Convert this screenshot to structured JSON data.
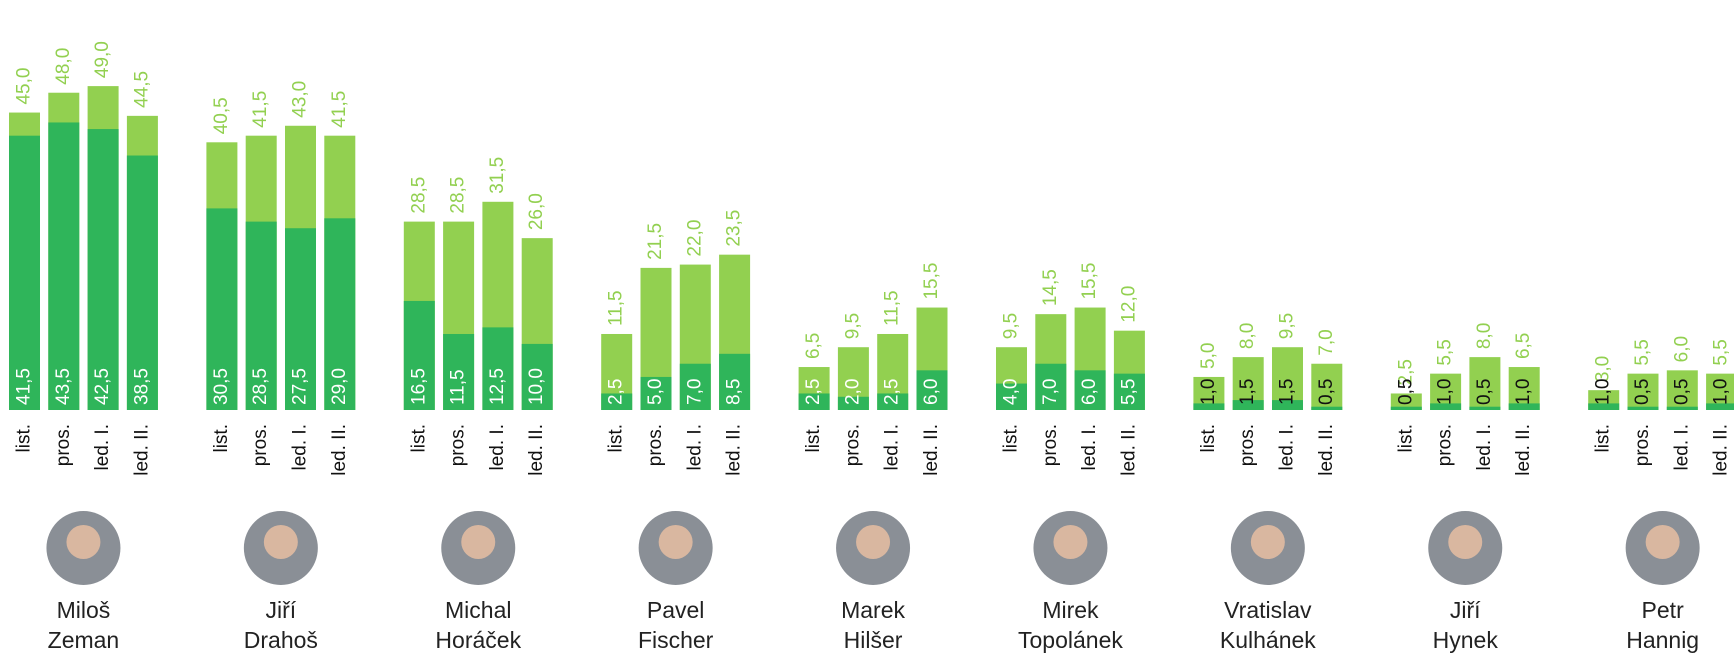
{
  "chart_data": {
    "type": "bar",
    "categories": [
      "list.",
      "pros.",
      "led. I.",
      "led. II."
    ],
    "groups": [
      {
        "name": [
          "Miloš",
          "Zeman"
        ],
        "series": [
          {
            "color": "#92d050",
            "values": [
              45,
              48,
              49,
              44.5
            ],
            "value_labels": [
              "45,0",
              "48,0",
              "49,0",
              "44,5"
            ]
          },
          {
            "color": "#2fb55a",
            "values": [
              41.5,
              43.5,
              42.5,
              38.5
            ],
            "value_labels": [
              "41,5",
              "43,5",
              "42,5",
              "38,5"
            ]
          }
        ]
      },
      {
        "name": [
          "Jiří",
          "Drahoš"
        ],
        "series": [
          {
            "color": "#92d050",
            "values": [
              40.5,
              41.5,
              43,
              41.5
            ],
            "value_labels": [
              "40,5",
              "41,5",
              "43,0",
              "41,5"
            ]
          },
          {
            "color": "#2fb55a",
            "values": [
              30.5,
              28.5,
              27.5,
              29
            ],
            "value_labels": [
              "30,5",
              "28,5",
              "27,5",
              "29,0"
            ]
          }
        ]
      },
      {
        "name": [
          "Michal",
          "Horáček"
        ],
        "series": [
          {
            "color": "#92d050",
            "values": [
              28.5,
              28.5,
              31.5,
              26
            ],
            "value_labels": [
              "28,5",
              "28,5",
              "31,5",
              "26,0"
            ]
          },
          {
            "color": "#2fb55a",
            "values": [
              16.5,
              11.5,
              12.5,
              10
            ],
            "value_labels": [
              "16,5",
              "11,5",
              "12,5",
              "10,0"
            ]
          }
        ]
      },
      {
        "name": [
          "Pavel",
          "Fischer"
        ],
        "series": [
          {
            "color": "#92d050",
            "values": [
              11.5,
              21.5,
              22,
              23.5
            ],
            "value_labels": [
              "11,5",
              "21,5",
              "22,0",
              "23,5"
            ]
          },
          {
            "color": "#2fb55a",
            "values": [
              2.5,
              5,
              7,
              8.5
            ],
            "value_labels": [
              "2,5",
              "5,0",
              "7,0",
              "8,5"
            ]
          }
        ]
      },
      {
        "name": [
          "Marek",
          "Hilšer"
        ],
        "series": [
          {
            "color": "#92d050",
            "values": [
              6.5,
              9.5,
              11.5,
              15.5
            ],
            "value_labels": [
              "6,5",
              "9,5",
              "11,5",
              "15,5"
            ]
          },
          {
            "color": "#2fb55a",
            "values": [
              2.5,
              2,
              2.5,
              6
            ],
            "value_labels": [
              "2,5",
              "2,0",
              "2,5",
              "6,0"
            ]
          }
        ]
      },
      {
        "name": [
          "Mirek",
          "Topolánek"
        ],
        "series": [
          {
            "color": "#92d050",
            "values": [
              9.5,
              14.5,
              15.5,
              12
            ],
            "value_labels": [
              "9,5",
              "14,5",
              "15,5",
              "12,0"
            ]
          },
          {
            "color": "#2fb55a",
            "values": [
              4,
              7,
              6,
              5.5
            ],
            "value_labels": [
              "4,0",
              "7,0",
              "6,0",
              "5,5"
            ]
          }
        ]
      },
      {
        "name": [
          "Vratislav",
          "Kulhánek"
        ],
        "series": [
          {
            "color": "#92d050",
            "values": [
              5,
              8,
              9.5,
              7
            ],
            "value_labels": [
              "5,0",
              "8,0",
              "9,5",
              "7,0"
            ]
          },
          {
            "color": "#2fb55a",
            "values": [
              1,
              1.5,
              1.5,
              0.5
            ],
            "value_labels": [
              "1,0",
              "1,5",
              "1,5",
              "0,5"
            ]
          }
        ]
      },
      {
        "name": [
          "Jiří",
          "Hynek"
        ],
        "series": [
          {
            "color": "#92d050",
            "values": [
              2.5,
              5.5,
              8,
              6.5
            ],
            "value_labels": [
              "2,5",
              "5,5",
              "8,0",
              "6,5"
            ]
          },
          {
            "color": "#2fb55a",
            "values": [
              0.5,
              1,
              0.5,
              1
            ],
            "value_labels": [
              "0,5",
              "1,0",
              "0,5",
              "1,0"
            ]
          }
        ]
      },
      {
        "name": [
          "Petr",
          "Hannig"
        ],
        "series": [
          {
            "color": "#92d050",
            "values": [
              3,
              5.5,
              6,
              5.5
            ],
            "value_labels": [
              "3,0",
              "5,5",
              "6,0",
              "5,5"
            ]
          },
          {
            "color": "#2fb55a",
            "values": [
              1,
              0.5,
              0.5,
              1
            ],
            "value_labels": [
              "1,0",
              "0,5",
              "0,5",
              "1,0"
            ]
          }
        ]
      }
    ]
  }
}
